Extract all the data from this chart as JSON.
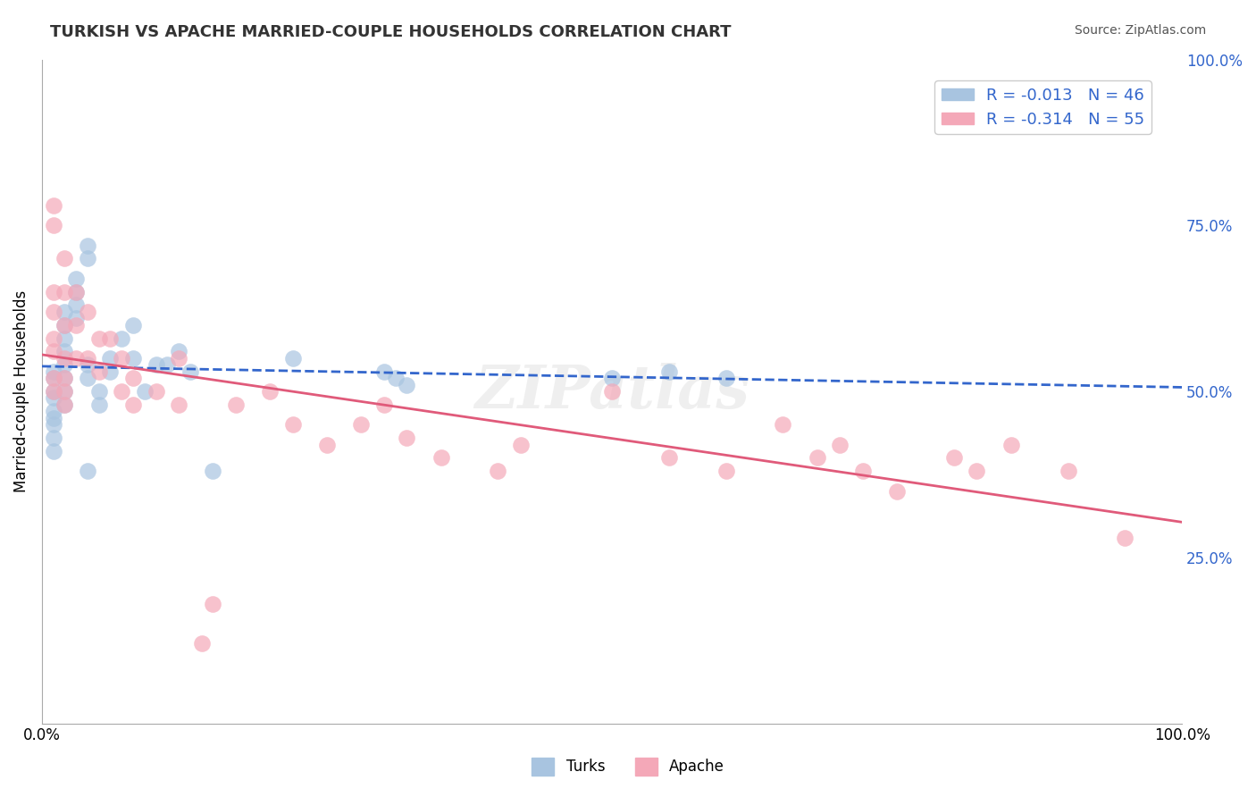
{
  "title": "TURKISH VS APACHE MARRIED-COUPLE HOUSEHOLDS CORRELATION CHART",
  "source": "Source: ZipAtlas.com",
  "ylabel": "Married-couple Households",
  "xlabel": "",
  "xlim": [
    0.0,
    1.0
  ],
  "ylim": [
    0.0,
    1.0
  ],
  "xtick_labels": [
    "0.0%",
    "100.0%"
  ],
  "ytick_labels": [
    "25.0%",
    "50.0%",
    "75.0%",
    "100.0%"
  ],
  "ytick_positions": [
    0.25,
    0.5,
    0.75,
    1.0
  ],
  "turks_R": "-0.013",
  "turks_N": "46",
  "apache_R": "-0.314",
  "apache_N": "55",
  "turks_color": "#a8c4e0",
  "apache_color": "#f4a8b8",
  "turks_line_color": "#3366cc",
  "apache_line_color": "#e05a7a",
  "background_color": "#ffffff",
  "grid_color": "#cccccc",
  "watermark": "ZIPatlas",
  "turks_x": [
    0.01,
    0.01,
    0.01,
    0.01,
    0.01,
    0.01,
    0.01,
    0.01,
    0.01,
    0.02,
    0.02,
    0.02,
    0.02,
    0.02,
    0.02,
    0.02,
    0.02,
    0.03,
    0.03,
    0.03,
    0.03,
    0.04,
    0.04,
    0.04,
    0.04,
    0.04,
    0.05,
    0.05,
    0.06,
    0.06,
    0.07,
    0.08,
    0.08,
    0.09,
    0.1,
    0.11,
    0.12,
    0.13,
    0.15,
    0.22,
    0.3,
    0.31,
    0.32,
    0.5,
    0.55,
    0.6
  ],
  "turks_y": [
    0.53,
    0.52,
    0.5,
    0.49,
    0.47,
    0.46,
    0.45,
    0.43,
    0.41,
    0.62,
    0.6,
    0.58,
    0.56,
    0.54,
    0.52,
    0.5,
    0.48,
    0.67,
    0.65,
    0.63,
    0.61,
    0.72,
    0.7,
    0.54,
    0.52,
    0.38,
    0.5,
    0.48,
    0.55,
    0.53,
    0.58,
    0.6,
    0.55,
    0.5,
    0.54,
    0.54,
    0.56,
    0.53,
    0.38,
    0.55,
    0.53,
    0.52,
    0.51,
    0.52,
    0.53,
    0.52
  ],
  "apache_x": [
    0.01,
    0.01,
    0.01,
    0.01,
    0.01,
    0.01,
    0.01,
    0.01,
    0.02,
    0.02,
    0.02,
    0.02,
    0.02,
    0.02,
    0.02,
    0.03,
    0.03,
    0.03,
    0.04,
    0.04,
    0.05,
    0.05,
    0.06,
    0.07,
    0.07,
    0.08,
    0.08,
    0.1,
    0.12,
    0.12,
    0.14,
    0.15,
    0.17,
    0.2,
    0.22,
    0.25,
    0.28,
    0.3,
    0.32,
    0.35,
    0.4,
    0.42,
    0.5,
    0.55,
    0.6,
    0.65,
    0.68,
    0.7,
    0.72,
    0.75,
    0.8,
    0.82,
    0.85,
    0.9,
    0.95
  ],
  "apache_y": [
    0.78,
    0.75,
    0.65,
    0.62,
    0.58,
    0.56,
    0.52,
    0.5,
    0.7,
    0.65,
    0.6,
    0.55,
    0.52,
    0.5,
    0.48,
    0.65,
    0.6,
    0.55,
    0.62,
    0.55,
    0.58,
    0.53,
    0.58,
    0.55,
    0.5,
    0.48,
    0.52,
    0.5,
    0.55,
    0.48,
    0.12,
    0.18,
    0.48,
    0.5,
    0.45,
    0.42,
    0.45,
    0.48,
    0.43,
    0.4,
    0.38,
    0.42,
    0.5,
    0.4,
    0.38,
    0.45,
    0.4,
    0.42,
    0.38,
    0.35,
    0.4,
    0.38,
    0.42,
    0.38,
    0.28
  ]
}
